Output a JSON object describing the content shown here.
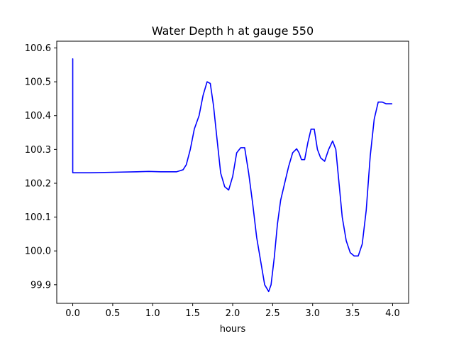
{
  "chart_data": {
    "type": "line",
    "title": "Water Depth h at gauge 550",
    "xlabel": "hours",
    "ylabel": "",
    "xlim": [
      -0.2,
      4.2
    ],
    "ylim": [
      99.845,
      100.62
    ],
    "grid": false,
    "legend": "none",
    "x_ticks": [
      0.0,
      0.5,
      1.0,
      1.5,
      2.0,
      2.5,
      3.0,
      3.5,
      4.0
    ],
    "x_tick_labels": [
      "0.0",
      "0.5",
      "1.0",
      "1.5",
      "2.0",
      "2.5",
      "3.0",
      "3.5",
      "4.0"
    ],
    "y_ticks": [
      99.9,
      100.0,
      100.1,
      100.2,
      100.3,
      100.4,
      100.5,
      100.6
    ],
    "y_tick_labels": [
      "99.9",
      "100.0",
      "100.1",
      "100.2",
      "100.3",
      "100.4",
      "100.5",
      "100.6"
    ],
    "series": [
      {
        "name": "",
        "color": "#0000ff",
        "x": [
          0.0,
          0.0,
          0.001,
          0.2,
          0.4,
          0.6,
          0.8,
          0.95,
          1.1,
          1.3,
          1.38,
          1.42,
          1.47,
          1.52,
          1.58,
          1.63,
          1.68,
          1.72,
          1.76,
          1.8,
          1.85,
          1.9,
          1.95,
          2.0,
          2.05,
          2.1,
          2.15,
          2.2,
          2.25,
          2.3,
          2.35,
          2.4,
          2.45,
          2.48,
          2.52,
          2.56,
          2.6,
          2.65,
          2.7,
          2.75,
          2.8,
          2.83,
          2.86,
          2.9,
          2.94,
          2.98,
          3.02,
          3.06,
          3.1,
          3.15,
          3.2,
          3.25,
          3.29,
          3.33,
          3.37,
          3.42,
          3.47,
          3.52,
          3.57,
          3.62,
          3.67,
          3.72,
          3.77,
          3.82,
          3.87,
          3.92,
          3.96,
          3.99
        ],
        "y": [
          100.568,
          100.232,
          100.231,
          100.231,
          100.232,
          100.233,
          100.234,
          100.235,
          100.234,
          100.234,
          100.24,
          100.255,
          100.3,
          100.36,
          100.4,
          100.46,
          100.5,
          100.495,
          100.43,
          100.34,
          100.23,
          100.19,
          100.18,
          100.22,
          100.29,
          100.305,
          100.305,
          100.23,
          100.14,
          100.04,
          99.97,
          99.9,
          99.88,
          99.9,
          99.98,
          100.08,
          100.15,
          100.2,
          100.25,
          100.29,
          100.302,
          100.29,
          100.27,
          100.27,
          100.32,
          100.36,
          100.36,
          100.3,
          100.275,
          100.265,
          100.3,
          100.325,
          100.3,
          100.2,
          100.1,
          100.03,
          99.995,
          99.985,
          99.985,
          100.02,
          100.12,
          100.28,
          100.39,
          100.44,
          100.44,
          100.435,
          100.435,
          100.435
        ]
      }
    ]
  }
}
